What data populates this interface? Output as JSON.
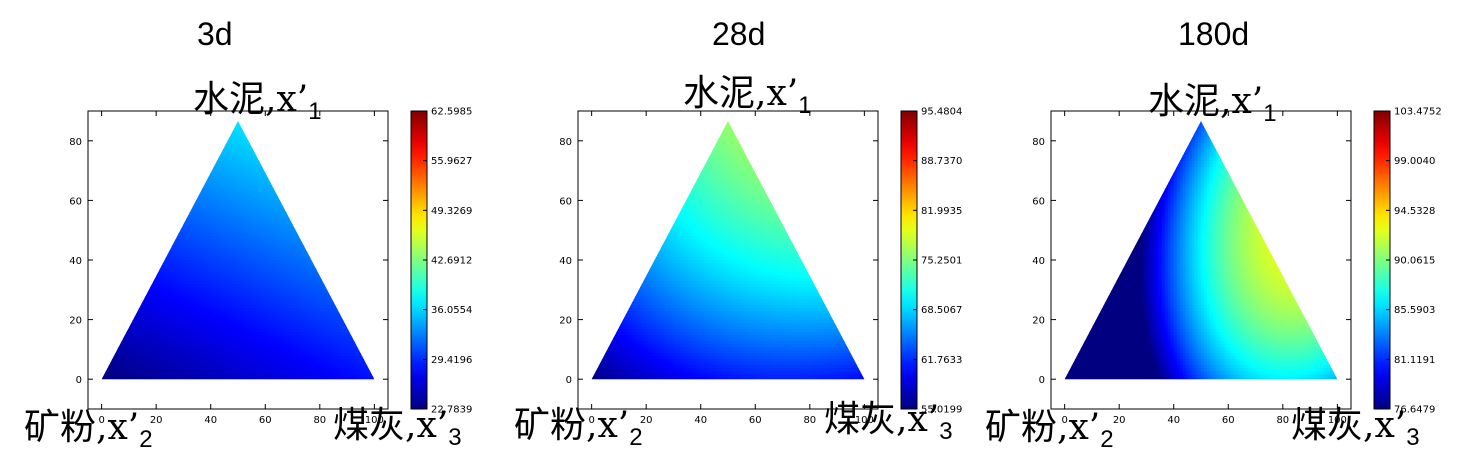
{
  "chart_data": [
    {
      "type": "heatmap",
      "title": "3d",
      "colormap": "jet",
      "grid": false,
      "xlim": [
        -5,
        105
      ],
      "ylim": [
        -10,
        90
      ],
      "x_ticks": [
        "0",
        "20",
        "40",
        "60",
        "80",
        "100"
      ],
      "y_ticks": [
        "0",
        "20",
        "40",
        "60",
        "80"
      ],
      "vertex_labels": {
        "top": {
          "text": "水泥,x’",
          "sub": "1"
        },
        "left": {
          "text": "矿粉,x’",
          "sub": "2"
        },
        "right": {
          "text": "煤灰,x’",
          "sub": "3"
        }
      },
      "triangle": {
        "left": [
          0,
          0
        ],
        "right": [
          100,
          0
        ],
        "top": [
          50,
          86.6
        ]
      },
      "colorbar": {
        "min": 22.7839,
        "max": 62.5985,
        "ticks": [
          "22.7839",
          "29.4196",
          "36.0554",
          "42.6912",
          "49.3269",
          "55.9627",
          "62.5985"
        ]
      },
      "field": {
        "a": 0.35,
        "b": 0.0,
        "c": 0.14,
        "d": 0.0,
        "e": 0.0,
        "f": 0.0,
        "g": 0.0
      }
    },
    {
      "type": "heatmap",
      "title": "28d",
      "colormap": "jet",
      "grid": false,
      "xlim": [
        -5,
        105
      ],
      "ylim": [
        -10,
        90
      ],
      "x_ticks": [
        "0",
        "20",
        "40",
        "60",
        "80",
        "100"
      ],
      "y_ticks": [
        "0",
        "20",
        "40",
        "60",
        "80"
      ],
      "vertex_labels": {
        "top": {
          "text": "水泥,x’",
          "sub": "1"
        },
        "left": {
          "text": "矿粉,x’",
          "sub": "2"
        },
        "right": {
          "text": "煤灰,x’",
          "sub": "3"
        }
      },
      "triangle": {
        "left": [
          0,
          0
        ],
        "right": [
          100,
          0
        ],
        "top": [
          50,
          86.6
        ]
      },
      "colorbar": {
        "min": 55.0199,
        "max": 95.4804,
        "ticks": [
          "55.0199",
          "61.7633",
          "68.5067",
          "75.2501",
          "81.9935",
          "88.7370",
          "95.4804"
        ]
      },
      "field": {
        "a": 0.7,
        "b": -0.18,
        "c": 0.13,
        "d": 0.2,
        "e": 0.3,
        "f": 0.0,
        "g": 0.0
      }
    },
    {
      "type": "heatmap",
      "title": "180d",
      "colormap": "jet",
      "grid": false,
      "xlim": [
        -5,
        105
      ],
      "ylim": [
        -10,
        90
      ],
      "x_ticks": [
        "0",
        "20",
        "40",
        "60",
        "80",
        "100"
      ],
      "y_ticks": [
        "0",
        "20",
        "40",
        "60",
        "80"
      ],
      "vertex_labels": {
        "top": {
          "text": "水泥,x’",
          "sub": "1"
        },
        "left": {
          "text": "矿粉,x’",
          "sub": "2"
        },
        "right": {
          "text": "煤灰,x’",
          "sub": "3"
        }
      },
      "triangle": {
        "left": [
          0,
          0
        ],
        "right": [
          100,
          0
        ],
        "top": [
          50,
          86.6
        ]
      },
      "colorbar": {
        "min": 76.6479,
        "max": 103.4752,
        "ticks": [
          "76.6479",
          "81.1191",
          "85.5903",
          "90.0615",
          "94.5328",
          "99.0040",
          "103.4752"
        ]
      },
      "field": {
        "a": 1.0,
        "b": -0.85,
        "c": 0.25,
        "d": 0.5,
        "e": 1.7,
        "f": -0.8,
        "g": 0.05
      }
    }
  ]
}
